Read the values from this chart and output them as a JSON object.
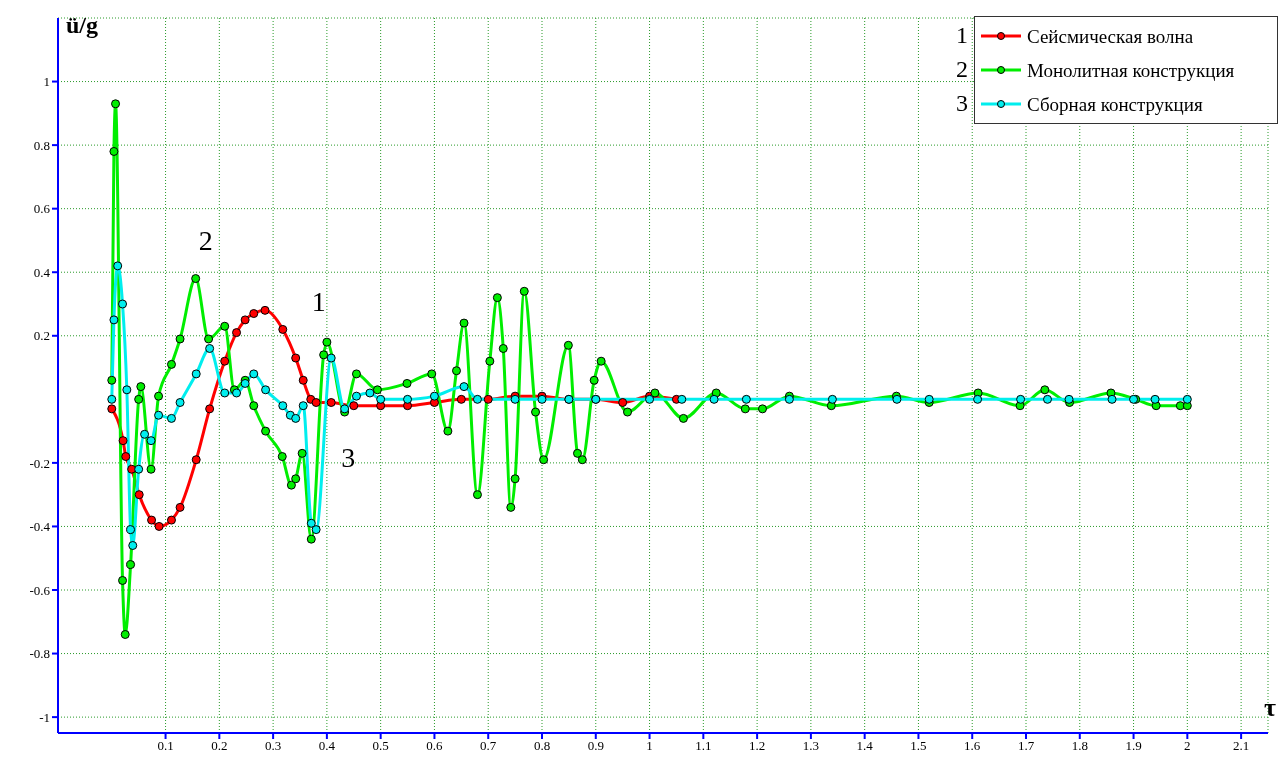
{
  "chart_data": {
    "type": "line",
    "xlabel": "τ",
    "ylabel": "ü/g",
    "xlim": [
      -0.1,
      2.15
    ],
    "ylim": [
      -1.05,
      1.2
    ],
    "xticks": [
      0.1,
      0.2,
      0.3,
      0.4,
      0.5,
      0.6,
      0.7,
      0.8,
      0.9,
      1,
      1.1,
      1.2,
      1.3,
      1.4,
      1.5,
      1.6,
      1.7,
      1.8,
      1.9,
      2,
      2.1
    ],
    "yticks": [
      -1,
      -0.8,
      -0.6,
      -0.4,
      -0.2,
      0.2,
      0.4,
      0.6,
      0.8,
      1
    ],
    "grid": true,
    "legend": "top right",
    "marker": "circle",
    "line_style": "solid",
    "annotations": [
      "1",
      "2",
      "3",
      {
        "text": "1",
        "x": 0.318,
        "y": 0.22
      },
      {
        "text": "2",
        "x": 0.156,
        "y": 0.38
      },
      {
        "text": "3",
        "x": 0.38,
        "y": -0.41
      }
    ],
    "series": [
      {
        "name": "Сейсмическая волна",
        "color": "#ff0000",
        "x": [
          0,
          0.021,
          0.026,
          0.037,
          0.051,
          0.074,
          0.088,
          0.111,
          0.127,
          0.157,
          0.182,
          0.21,
          0.232,
          0.248,
          0.264,
          0.285,
          0.318,
          0.342,
          0.356,
          0.37,
          0.38,
          0.408,
          0.45,
          0.5,
          0.55,
          0.6,
          0.65,
          0.7,
          0.75,
          0.8,
          0.85,
          0.9,
          0.95,
          1,
          1.05
        ],
        "values": [
          -0.03,
          -0.13,
          -0.18,
          -0.22,
          -0.3,
          -0.38,
          -0.4,
          -0.38,
          -0.34,
          -0.19,
          -0.03,
          0.12,
          0.21,
          0.25,
          0.27,
          0.28,
          0.22,
          0.13,
          0.06,
          0,
          -0.01,
          -0.01,
          -0.02,
          -0.02,
          -0.02,
          -0.01,
          0,
          0,
          0.01,
          0.01,
          0,
          0,
          -0.01,
          0.01,
          0
        ]
      },
      {
        "name": "Монолитная конструкция",
        "color": "#00ee00",
        "x": [
          0,
          0.004,
          0.007,
          0.02,
          0.025,
          0.035,
          0.05,
          0.054,
          0.073,
          0.087,
          0.111,
          0.127,
          0.156,
          0.18,
          0.21,
          0.228,
          0.248,
          0.264,
          0.286,
          0.317,
          0.334,
          0.342,
          0.354,
          0.371,
          0.394,
          0.4,
          0.433,
          0.455,
          0.494,
          0.549,
          0.595,
          0.625,
          0.641,
          0.655,
          0.68,
          0.703,
          0.717,
          0.728,
          0.742,
          0.75,
          0.767,
          0.788,
          0.803,
          0.849,
          0.866,
          0.875,
          0.897,
          0.91,
          0.959,
          1.01,
          1.063,
          1.124,
          1.178,
          1.21,
          1.26,
          1.338,
          1.459,
          1.52,
          1.611,
          1.689,
          1.735,
          1.781,
          1.858,
          1.904,
          1.942,
          1.987,
          2
        ],
        "values": [
          0.06,
          0.78,
          0.93,
          -0.57,
          -0.74,
          -0.52,
          0,
          0.04,
          -0.22,
          0.01,
          0.11,
          0.19,
          0.38,
          0.19,
          0.23,
          0.03,
          0.06,
          -0.02,
          -0.1,
          -0.18,
          -0.27,
          -0.25,
          -0.17,
          -0.44,
          0.14,
          0.18,
          -0.04,
          0.08,
          0.03,
          0.05,
          0.08,
          -0.1,
          0.09,
          0.24,
          -0.3,
          0.12,
          0.32,
          0.16,
          -0.34,
          -0.25,
          0.34,
          -0.04,
          -0.19,
          0.17,
          -0.17,
          -0.19,
          0.06,
          0.12,
          -0.04,
          0.02,
          -0.06,
          0.02,
          -0.03,
          -0.03,
          0.01,
          -0.02,
          0.01,
          -0.01,
          0.02,
          -0.02,
          0.03,
          -0.01,
          0.02,
          0,
          -0.02,
          -0.02,
          -0.02
        ]
      },
      {
        "name": "Сборная конструкция",
        "color": "#00eeee",
        "x": [
          0,
          0.004,
          0.011,
          0.02,
          0.028,
          0.035,
          0.039,
          0.05,
          0.061,
          0.073,
          0.087,
          0.111,
          0.127,
          0.157,
          0.182,
          0.21,
          0.232,
          0.248,
          0.264,
          0.286,
          0.318,
          0.332,
          0.342,
          0.356,
          0.371,
          0.38,
          0.408,
          0.433,
          0.455,
          0.48,
          0.5,
          0.55,
          0.6,
          0.655,
          0.68,
          0.75,
          0.8,
          0.85,
          0.9,
          1,
          1.06,
          1.12,
          1.18,
          1.26,
          1.34,
          1.46,
          1.52,
          1.61,
          1.69,
          1.74,
          1.78,
          1.86,
          1.9,
          1.94,
          2
        ],
        "values": [
          0,
          0.25,
          0.42,
          0.3,
          0.03,
          -0.41,
          -0.46,
          -0.22,
          -0.11,
          -0.13,
          -0.05,
          -0.06,
          -0.01,
          0.08,
          0.16,
          0.02,
          0.02,
          0.05,
          0.08,
          0.03,
          -0.02,
          -0.05,
          -0.06,
          -0.02,
          -0.39,
          -0.41,
          0.13,
          -0.03,
          0.01,
          0.02,
          0,
          0,
          0.01,
          0.04,
          0,
          0,
          0,
          0,
          0,
          0,
          0,
          0,
          0,
          0,
          0,
          0,
          0,
          0,
          0,
          0,
          0,
          0,
          0,
          0,
          0
        ]
      }
    ]
  }
}
